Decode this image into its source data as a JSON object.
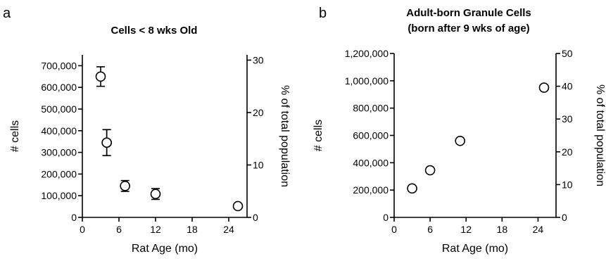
{
  "chart_data": [
    {
      "panel": "a",
      "type": "scatter",
      "title": "Cells < 8 wks Old",
      "xlabel": "Rat Age (mo)",
      "ylabel": "# cells",
      "y2label": "% of total population",
      "xlim": [
        0,
        27
      ],
      "ylim": [
        0,
        750000
      ],
      "y2lim": [
        0,
        31
      ],
      "x_ticks": [
        "0",
        "6",
        "12",
        "18",
        "24"
      ],
      "y_ticks": [
        "0",
        "100,000",
        "200,000",
        "300,000",
        "400,000",
        "500,000",
        "600,000",
        "700,000"
      ],
      "y2_ticks": [
        "0",
        "10",
        "20",
        "30"
      ],
      "grid": false,
      "series": [
        {
          "x": [
            3,
            4,
            4,
            7,
            12,
            25.5
          ],
          "y": [
            650000,
            345000,
            345000,
            145000,
            108000,
            52000
          ],
          "err": [
            45000,
            60000,
            60000,
            25000,
            25000,
            0
          ]
        }
      ]
    },
    {
      "panel": "b",
      "type": "scatter",
      "title": "Adult-born Granule Cells\n(born after 9 wks of age)",
      "title_lines": [
        "Adult-born Granule Cells",
        "(born after 9 wks of age)"
      ],
      "xlabel": "Rat Age (mo)",
      "ylabel": "# cells",
      "y2label": "% of total population",
      "xlim": [
        0,
        27
      ],
      "ylim": [
        0,
        1200000
      ],
      "y2lim": [
        0,
        50
      ],
      "x_ticks": [
        "0",
        "6",
        "12",
        "18",
        "24"
      ],
      "y_ticks": [
        "0",
        "200,000",
        "400,000",
        "600,000",
        "800,000",
        "1,000,000",
        "1,200,000"
      ],
      "y2_ticks": [
        "0",
        "10",
        "20",
        "30",
        "40",
        "50"
      ],
      "grid": false,
      "series": [
        {
          "x": [
            3,
            6,
            11,
            25
          ],
          "y": [
            212000,
            345000,
            560000,
            950000
          ],
          "err": [
            0,
            0,
            0,
            0
          ]
        }
      ]
    }
  ]
}
